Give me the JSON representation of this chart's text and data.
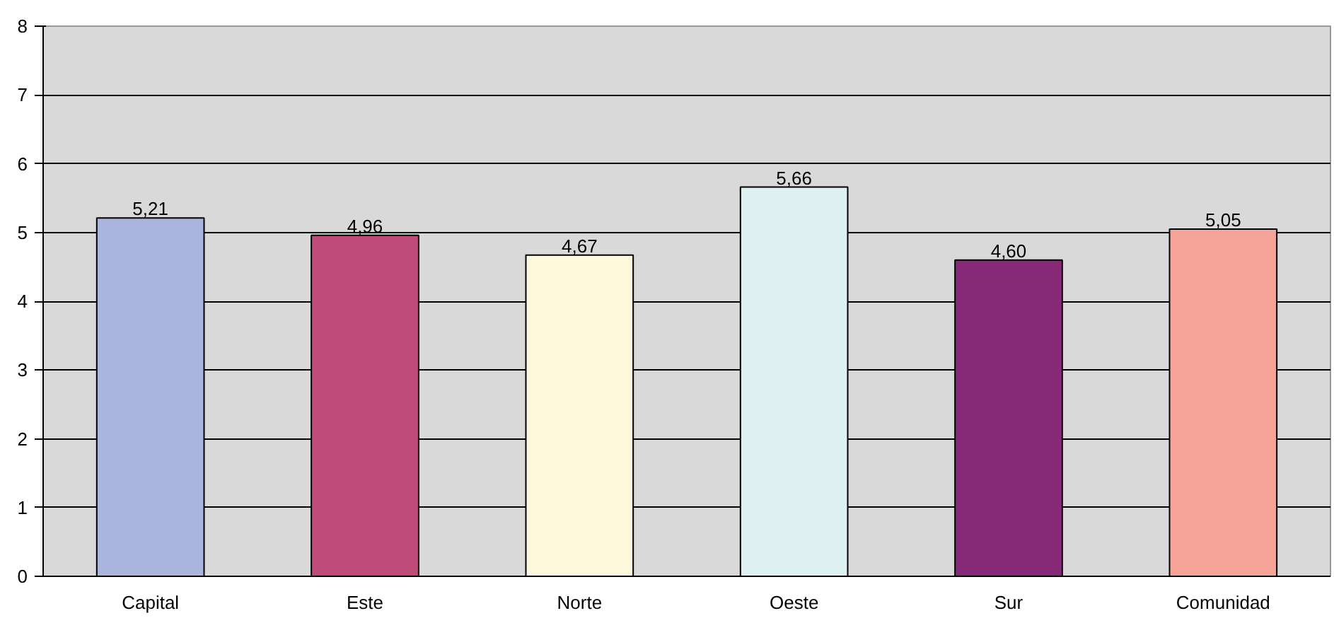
{
  "chart_data": {
    "type": "bar",
    "categories": [
      "Capital",
      "Este",
      "Norte",
      "Oeste",
      "Sur",
      "Comunidad"
    ],
    "values": [
      5.21,
      4.96,
      4.67,
      5.66,
      4.6,
      5.05
    ],
    "colors": [
      "#aab4dc",
      "#bf4b78",
      "#fdf8dc",
      "#dff0f0",
      "#862a78",
      "#f6a397"
    ],
    "value_labels": [
      "5,21",
      "4,96",
      "4,67",
      "5,66",
      "4,60",
      "5,05"
    ],
    "ylim": [
      0,
      8
    ],
    "yticks": [
      0,
      1,
      2,
      3,
      4,
      5,
      6,
      7,
      8
    ],
    "grid": "y"
  }
}
